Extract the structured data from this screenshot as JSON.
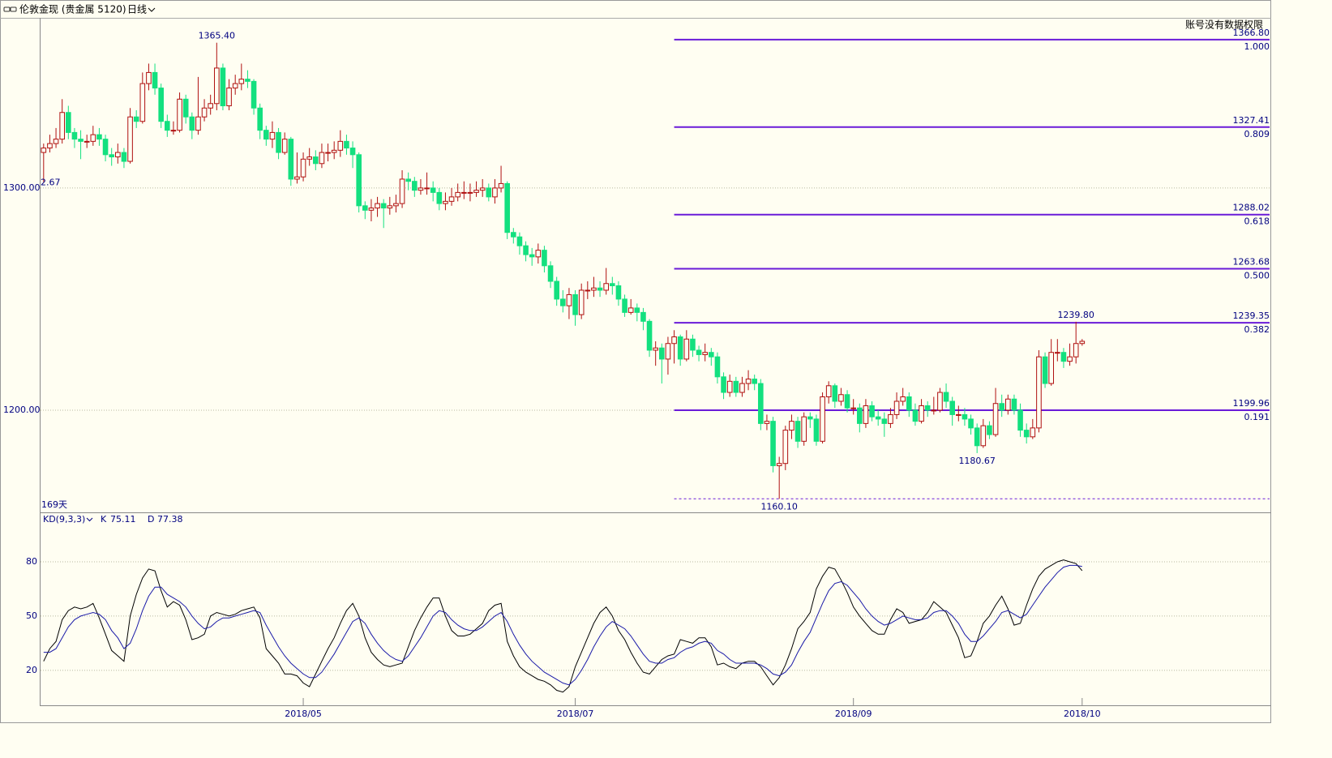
{
  "header": {
    "symbol": "伦敦金现 (贵金属 5120)",
    "period": "日线",
    "notice": "账号没有数据权限"
  },
  "chart_data": {
    "type": "candlestick",
    "open": [
      1316,
      1318,
      1320,
      1322,
      1334,
      1325,
      1322,
      1321,
      1321,
      1324,
      1322,
      1315,
      1314,
      1316,
      1312,
      1332,
      1330,
      1347,
      1352,
      1345,
      1330,
      1326,
      1326,
      1340,
      1332,
      1326,
      1332,
      1336,
      1338,
      1354,
      1337,
      1345,
      1347,
      1349,
      1348,
      1336,
      1326,
      1322,
      1325,
      1316,
      1322,
      1304,
      1305,
      1313,
      1314,
      1311,
      1316,
      1316,
      1317,
      1321,
      1318,
      1315,
      1292,
      1290,
      1291,
      1293,
      1291,
      1292,
      1293,
      1304,
      1303,
      1299,
      1300,
      1300,
      1298,
      1293,
      1294,
      1296,
      1298,
      1298,
      1298,
      1299,
      1300,
      1296,
      1300,
      1302,
      1280,
      1278,
      1274,
      1270,
      1269,
      1272,
      1265,
      1258,
      1250,
      1247,
      1252,
      1243,
      1254,
      1254,
      1255,
      1254,
      1257,
      1256,
      1250,
      1244,
      1246,
      1244,
      1240,
      1227,
      1228,
      1223,
      1230,
      1233,
      1223,
      1232,
      1227,
      1225,
      1226,
      1224,
      1215,
      1208,
      1213,
      1208,
      1212,
      1214,
      1212,
      1194,
      1195,
      1175,
      1176,
      1191,
      1195,
      1186,
      1197,
      1196,
      1186,
      1206,
      1211,
      1204,
      1207,
      1201,
      1201,
      1194,
      1202,
      1197,
      1196,
      1194,
      1198,
      1204,
      1206,
      1200,
      1195,
      1202,
      1200,
      1200,
      1208,
      1204,
      1198,
      1198,
      1196,
      1192,
      1184,
      1193,
      1189,
      1203,
      1200,
      1205,
      1200,
      1191,
      1188,
      1192,
      1224,
      1212,
      1226,
      1226,
      1222,
      1224,
      1230
    ],
    "high": [
      1320,
      1324,
      1327,
      1340,
      1337,
      1327,
      1326,
      1324,
      1328,
      1327,
      1324,
      1318,
      1320,
      1318,
      1336,
      1335,
      1352,
      1356,
      1356,
      1347,
      1333,
      1330,
      1343,
      1342,
      1334,
      1350,
      1340,
      1342,
      1365.4,
      1356,
      1349,
      1351,
      1356,
      1353,
      1349,
      1338,
      1328,
      1330,
      1327,
      1325,
      1323,
      1316,
      1316,
      1318,
      1317,
      1320,
      1320,
      1321,
      1326,
      1324,
      1321,
      1316,
      1294,
      1295,
      1296,
      1295,
      1296,
      1297,
      1308,
      1307,
      1305,
      1304,
      1307,
      1303,
      1300,
      1298,
      1300,
      1302,
      1303,
      1302,
      1303,
      1304,
      1302,
      1304,
      1310,
      1303,
      1282,
      1280,
      1276,
      1273,
      1275,
      1274,
      1267,
      1260,
      1254,
      1255,
      1254,
      1257,
      1258,
      1260,
      1258,
      1264,
      1260,
      1258,
      1252,
      1250,
      1248,
      1246,
      1241,
      1231,
      1230,
      1233,
      1236,
      1234,
      1236,
      1234,
      1229,
      1230,
      1228,
      1226,
      1217,
      1216,
      1215,
      1215,
      1218,
      1216,
      1214,
      1198,
      1197,
      1179,
      1193,
      1198,
      1197,
      1199,
      1199,
      1198,
      1208,
      1213,
      1212,
      1210,
      1209,
      1205,
      1203,
      1205,
      1204,
      1200,
      1199,
      1201,
      1208,
      1210,
      1208,
      1203,
      1205,
      1204,
      1206,
      1210,
      1212,
      1206,
      1202,
      1201,
      1198,
      1194,
      1196,
      1195,
      1210,
      1207,
      1207,
      1207,
      1203,
      1194,
      1196,
      1227,
      1226,
      1232,
      1232,
      1228,
      1230,
      1239.8,
      1232
    ],
    "low": [
      1302.67,
      1316,
      1318,
      1320,
      1322,
      1318,
      1313,
      1318,
      1319,
      1319,
      1312,
      1310,
      1311,
      1309,
      1311,
      1327,
      1329,
      1344,
      1342,
      1327,
      1323,
      1324,
      1325,
      1329,
      1322,
      1324,
      1330,
      1333,
      1335,
      1335,
      1335,
      1342,
      1344,
      1345,
      1333,
      1322,
      1319,
      1318,
      1313,
      1315,
      1301,
      1302,
      1303,
      1310,
      1308,
      1309,
      1312,
      1313,
      1314,
      1315,
      1309,
      1289,
      1286,
      1285,
      1287,
      1282,
      1288,
      1289,
      1291,
      1299,
      1296,
      1297,
      1297,
      1294,
      1290,
      1290,
      1292,
      1294,
      1295,
      1294,
      1296,
      1296,
      1294,
      1293,
      1298,
      1277,
      1275,
      1270,
      1267,
      1265,
      1266,
      1262,
      1255,
      1247,
      1244,
      1241,
      1238,
      1241,
      1250,
      1251,
      1251,
      1252,
      1252,
      1247,
      1242,
      1243,
      1240,
      1236,
      1224,
      1220,
      1212,
      1216,
      1221,
      1220,
      1222,
      1224,
      1222,
      1222,
      1220,
      1212,
      1205,
      1206,
      1206,
      1206,
      1209,
      1209,
      1191,
      1191,
      1172,
      1160.1,
      1173,
      1187,
      1183,
      1184,
      1192,
      1184,
      1185,
      1203,
      1201,
      1202,
      1199,
      1198,
      1190,
      1192,
      1195,
      1193,
      1188,
      1192,
      1196,
      1202,
      1197,
      1193,
      1194,
      1197,
      1198,
      1199,
      1201,
      1193,
      1195,
      1193,
      1189,
      1180.67,
      1183,
      1187,
      1188,
      1197,
      1198,
      1198,
      1188,
      1185,
      1187,
      1190,
      1210,
      1211,
      1222,
      1219,
      1220,
      1221,
      1229
    ],
    "close": [
      1318,
      1320,
      1322,
      1334,
      1325,
      1322,
      1321,
      1321,
      1324,
      1322,
      1315,
      1314,
      1316,
      1312,
      1332,
      1330,
      1347,
      1352,
      1345,
      1330,
      1326,
      1326,
      1340,
      1332,
      1326,
      1332,
      1336,
      1338,
      1354,
      1337,
      1345,
      1347,
      1349,
      1348,
      1336,
      1326,
      1322,
      1325,
      1316,
      1322,
      1304,
      1305,
      1313,
      1314,
      1311,
      1316,
      1316,
      1317,
      1321,
      1318,
      1315,
      1292,
      1290,
      1291,
      1293,
      1291,
      1292,
      1293,
      1304,
      1303,
      1299,
      1300,
      1300,
      1298,
      1293,
      1294,
      1296,
      1298,
      1298,
      1298,
      1299,
      1300,
      1296,
      1300,
      1302,
      1280,
      1278,
      1274,
      1270,
      1269,
      1272,
      1265,
      1258,
      1250,
      1247,
      1252,
      1243,
      1254,
      1254,
      1255,
      1254,
      1257,
      1256,
      1250,
      1244,
      1246,
      1244,
      1240,
      1227,
      1228,
      1223,
      1230,
      1233,
      1223,
      1232,
      1227,
      1225,
      1226,
      1224,
      1215,
      1208,
      1213,
      1208,
      1212,
      1214,
      1212,
      1194,
      1195,
      1175,
      1176,
      1191,
      1195,
      1186,
      1197,
      1196,
      1186,
      1206,
      1211,
      1204,
      1207,
      1201,
      1201,
      1194,
      1202,
      1197,
      1196,
      1194,
      1198,
      1204,
      1206,
      1200,
      1195,
      1202,
      1200,
      1200,
      1208,
      1204,
      1198,
      1198,
      1196,
      1192,
      1184,
      1193,
      1189,
      1203,
      1200,
      1205,
      1200,
      1191,
      1188,
      1192,
      1224,
      1212,
      1226,
      1226,
      1222,
      1224,
      1230,
      1231
    ],
    "up_color": "#b01010",
    "down_color": "#13e07f",
    "xlim": [
      -0.5,
      168.5
    ],
    "xticks": [
      {
        "value": 42,
        "label": "2018/05"
      },
      {
        "value": 86,
        "label": "2018/07"
      },
      {
        "value": 131,
        "label": "2018/09"
      },
      {
        "value": 168,
        "label": "2018/10"
      }
    ],
    "ylim": [
      1154,
      1376.6
    ],
    "yticks": [
      {
        "value": 1300,
        "label": "1300.00"
      },
      {
        "value": 1200,
        "label": "1200.00"
      }
    ],
    "grid": true,
    "period_label": "169天",
    "clipped_label": "2.67",
    "annotations": [
      {
        "index": 28,
        "label": "1365.40"
      },
      {
        "index": 167,
        "label": "1239.80"
      },
      {
        "index": 119,
        "label": "1160.10"
      },
      {
        "index": 151,
        "label": "1180.67"
      }
    ],
    "fib_start": 102,
    "fib_color": "#6a1bd8",
    "fib_levels": [
      {
        "price": {
          "value": 1366.8,
          "label": "1366.80"
        },
        "ratio": {
          "value": 1,
          "label": "1.000"
        }
      },
      {
        "price": {
          "value": 1327.41,
          "label": "1327.41"
        },
        "ratio": {
          "value": 0.809,
          "label": "0.809"
        }
      },
      {
        "price": {
          "value": 1288.02,
          "label": "1288.02"
        },
        "ratio": {
          "value": 0.618,
          "label": "0.618"
        }
      },
      {
        "price": {
          "value": 1263.68,
          "label": "1263.68"
        },
        "ratio": {
          "value": 0.5,
          "label": "0.500"
        }
      },
      {
        "price": {
          "value": 1239.35,
          "label": "1239.35"
        },
        "ratio": {
          "value": 0.382,
          "label": "0.382"
        }
      },
      {
        "price": {
          "value": 1199.96,
          "label": "1199.96"
        },
        "ratio": {
          "value": 0.191,
          "label": "0.191"
        }
      },
      {
        "price": {
          "value": 1160.1
        }
      }
    ],
    "kd": {
      "title": "KD(9,3,3)",
      "ylim": [
        0.7,
        107.3
      ],
      "yticks": [
        20,
        50,
        80
      ],
      "series": [
        {
          "name": "K",
          "color": "#000000",
          "values": [
            25,
            32,
            36,
            48,
            53,
            55,
            54,
            55,
            57,
            49,
            40,
            31,
            28,
            25,
            50,
            62,
            71,
            76,
            75,
            64,
            55,
            58,
            56,
            48,
            37,
            38,
            40,
            50,
            52,
            51,
            50,
            51,
            53,
            54,
            55,
            49,
            32,
            28,
            24,
            18,
            18,
            17,
            13,
            11,
            18,
            25,
            32,
            38,
            46,
            53,
            57,
            50,
            38,
            30,
            26,
            23,
            22,
            23,
            24,
            33,
            42,
            49,
            55,
            60,
            60,
            50,
            42,
            39,
            39,
            40,
            43,
            46,
            53,
            56,
            57,
            36,
            28,
            22,
            19,
            17,
            15,
            14,
            12,
            9,
            8,
            11,
            22,
            30,
            38,
            46,
            52,
            55,
            50,
            42,
            37,
            30,
            24,
            19,
            18,
            22,
            26,
            28,
            29,
            37,
            36,
            35,
            38,
            38,
            33,
            23,
            24,
            22,
            21,
            24,
            25,
            25,
            22,
            17,
            12,
            16,
            23,
            32,
            43,
            47,
            52,
            65,
            72,
            77,
            76,
            70,
            63,
            55,
            50,
            46,
            42,
            40,
            40,
            48,
            54,
            52,
            46,
            47,
            48,
            52,
            58,
            55,
            52,
            45,
            38,
            27,
            28,
            36,
            46,
            50,
            56,
            61,
            54,
            45,
            46,
            56,
            65,
            72,
            76,
            78,
            80,
            81,
            80,
            79,
            75.11
          ]
        },
        {
          "name": "D",
          "color": "#1a1aa8",
          "values": [
            30,
            30,
            32,
            38,
            44,
            48,
            50,
            51,
            52,
            51,
            48,
            42,
            38,
            32,
            35,
            43,
            53,
            61,
            66,
            66,
            62,
            60,
            58,
            55,
            50,
            46,
            43,
            44,
            47,
            49,
            49,
            50,
            51,
            52,
            53,
            52,
            45,
            39,
            33,
            28,
            24,
            21,
            18,
            16,
            16,
            19,
            24,
            29,
            35,
            41,
            47,
            49,
            46,
            40,
            35,
            31,
            28,
            26,
            25,
            28,
            33,
            38,
            44,
            50,
            53,
            52,
            48,
            45,
            43,
            42,
            42,
            44,
            47,
            50,
            52,
            47,
            40,
            34,
            29,
            25,
            22,
            19,
            17,
            15,
            13,
            12,
            15,
            20,
            26,
            33,
            39,
            44,
            47,
            45,
            43,
            39,
            34,
            29,
            25,
            24,
            24,
            26,
            27,
            30,
            32,
            33,
            35,
            36,
            35,
            31,
            29,
            26,
            24,
            24,
            24,
            24,
            23,
            21,
            18,
            17,
            19,
            23,
            30,
            36,
            41,
            49,
            57,
            64,
            68,
            69,
            67,
            63,
            59,
            54,
            50,
            47,
            45,
            46,
            48,
            50,
            49,
            48,
            48,
            49,
            52,
            53,
            53,
            50,
            46,
            40,
            36,
            36,
            39,
            43,
            47,
            52,
            53,
            51,
            49,
            51,
            56,
            61,
            66,
            70,
            74,
            77,
            78,
            78,
            77.38
          ]
        }
      ]
    }
  }
}
